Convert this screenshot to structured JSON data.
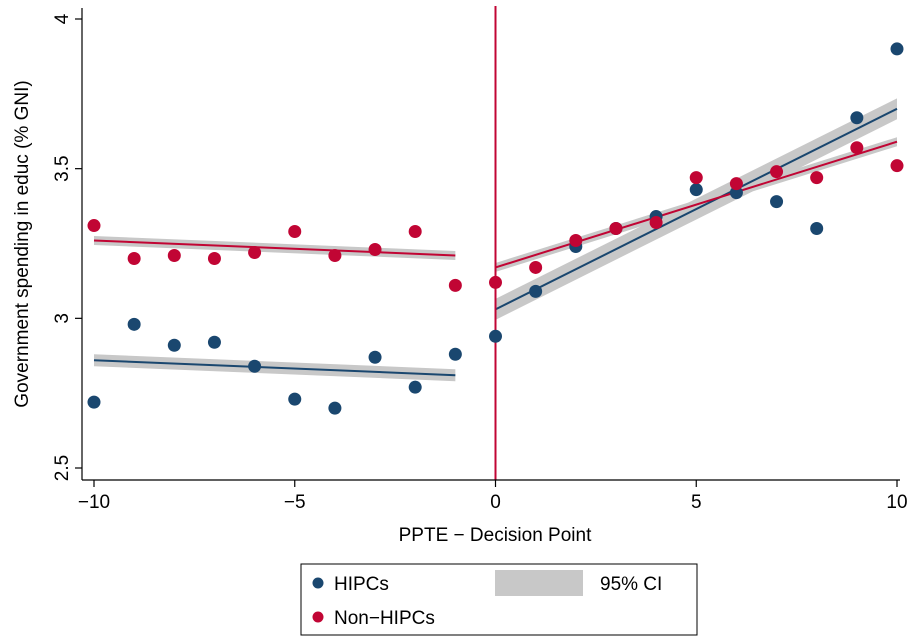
{
  "colors": {
    "hipc": "#1a476f",
    "nonhipc": "#c10534",
    "ci_band": "#c8c8c8",
    "cutoff_line": "#c10534",
    "axis": "#000000"
  },
  "chart_data": {
    "type": "scatter",
    "xlabel": "PPTE − Decision Point",
    "ylabel": "Government spending in educ (% GNI)",
    "xlim": [
      -10,
      10
    ],
    "ylim": [
      2.5,
      4
    ],
    "xticks": [
      -10,
      -5,
      0,
      5,
      10
    ],
    "xtick_labels": [
      "−10",
      "−5",
      "0",
      "5",
      "10"
    ],
    "yticks": [
      2.5,
      3,
      3.5,
      4
    ],
    "ytick_labels": [
      "2.5",
      "3",
      "3.5",
      "4"
    ],
    "grid": false,
    "cutoff_x": 0,
    "legend_position": "bottom",
    "legend": {
      "hipc": "HIPCs",
      "nonhipc": "Non−HIPCs",
      "ci": "95% CI"
    },
    "series": [
      {
        "name": "HIPCs",
        "color": "#1a476f",
        "x": [
          -10,
          -9,
          -8,
          -7,
          -6,
          -5,
          -4,
          -3,
          -2,
          -1,
          0,
          1,
          2,
          3,
          4,
          5,
          6,
          7,
          8,
          9,
          10
        ],
        "y": [
          2.72,
          2.98,
          2.91,
          2.92,
          2.84,
          2.73,
          2.7,
          2.87,
          2.77,
          2.88,
          2.94,
          3.09,
          3.24,
          3.3,
          3.34,
          3.43,
          3.42,
          3.39,
          3.3,
          3.67,
          3.9
        ],
        "fit_pre": {
          "x": [
            -10,
            -1
          ],
          "y": [
            2.86,
            2.81
          ],
          "ci_half_width": 0.02
        },
        "fit_post": {
          "x": [
            0,
            10
          ],
          "y": [
            3.03,
            3.7
          ],
          "ci_half_width": 0.035
        }
      },
      {
        "name": "Non−HIPCs",
        "color": "#c10534",
        "x": [
          -10,
          -9,
          -8,
          -7,
          -6,
          -5,
          -4,
          -3,
          -2,
          -1,
          0,
          1,
          2,
          3,
          4,
          5,
          6,
          7,
          8,
          9,
          10
        ],
        "y": [
          3.31,
          3.2,
          3.21,
          3.2,
          3.22,
          3.29,
          3.21,
          3.23,
          3.29,
          3.11,
          3.12,
          3.17,
          3.26,
          3.3,
          3.32,
          3.47,
          3.45,
          3.49,
          3.47,
          3.57,
          3.51
        ],
        "fit_pre": {
          "x": [
            -10,
            -1
          ],
          "y": [
            3.26,
            3.21
          ],
          "ci_half_width": 0.015
        },
        "fit_post": {
          "x": [
            0,
            10
          ],
          "y": [
            3.17,
            3.59
          ],
          "ci_half_width": 0.015
        }
      }
    ]
  }
}
